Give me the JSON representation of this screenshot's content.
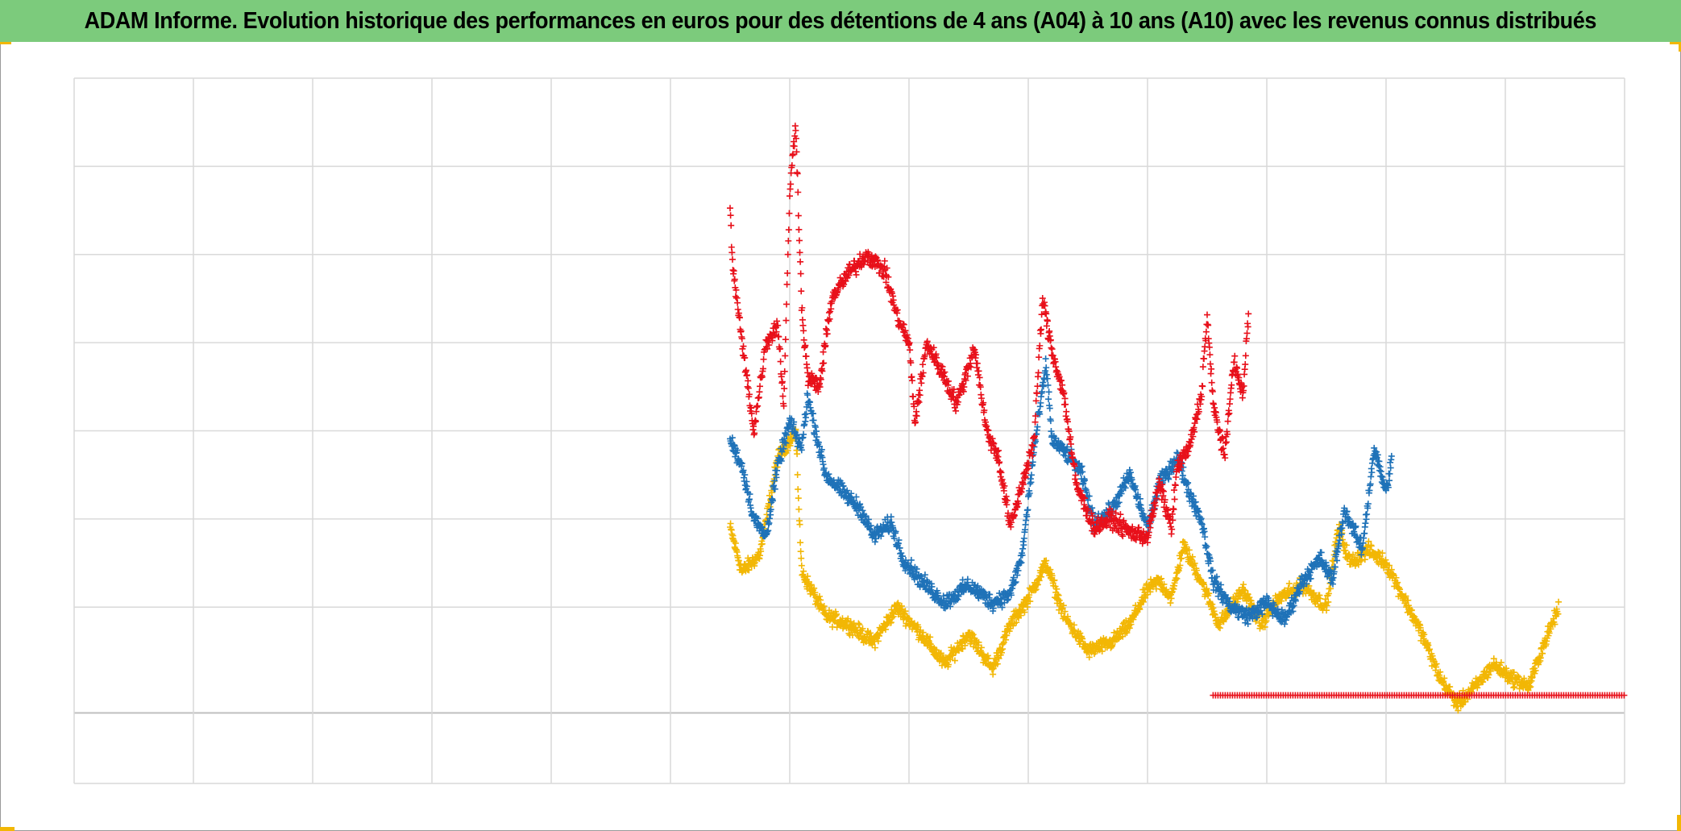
{
  "title": "ADAM Informe. Evolution historique des performances en euros pour des détentions de 4 ans (A04) à 10 ans (A10) avec les revenus connus distribués",
  "colors": {
    "title_bg": "#7ccb7c",
    "grid": "#d9d9d9",
    "zero_line": "#bfbfbf",
    "corner_marks": "#f2b705"
  },
  "chart_data": {
    "type": "scatter",
    "marker": "plus",
    "grid": true,
    "legend": "none",
    "x_grid_count": 13,
    "xlim": [
      0,
      13
    ],
    "ylim": [
      -0.8,
      7.2
    ],
    "y_gridlines": [
      -0.8,
      0,
      1.2,
      2.2,
      3.2,
      4.2,
      5.2,
      6.2,
      7.2
    ],
    "series": [
      {
        "color": "#f2b705",
        "anchors": [
          [
            5.5,
            2.1
          ],
          [
            5.6,
            1.6
          ],
          [
            5.75,
            1.8
          ],
          [
            5.9,
            2.9
          ],
          [
            6.05,
            3.2
          ],
          [
            6.1,
            1.6
          ],
          [
            6.3,
            1.1
          ],
          [
            6.5,
            1.0
          ],
          [
            6.7,
            0.8
          ],
          [
            6.9,
            1.2
          ],
          [
            7.1,
            0.9
          ],
          [
            7.3,
            0.55
          ],
          [
            7.5,
            0.9
          ],
          [
            7.7,
            0.5
          ],
          [
            7.85,
            1.0
          ],
          [
            8.0,
            1.3
          ],
          [
            8.15,
            1.7
          ],
          [
            8.3,
            1.1
          ],
          [
            8.5,
            0.7
          ],
          [
            8.7,
            0.8
          ],
          [
            8.85,
            1.0
          ],
          [
            9.0,
            1.4
          ],
          [
            9.1,
            1.5
          ],
          [
            9.2,
            1.3
          ],
          [
            9.3,
            1.9
          ],
          [
            9.45,
            1.5
          ],
          [
            9.6,
            1.0
          ],
          [
            9.7,
            1.2
          ],
          [
            9.8,
            1.4
          ],
          [
            9.95,
            1.0
          ],
          [
            10.1,
            1.3
          ],
          [
            10.3,
            1.45
          ],
          [
            10.5,
            1.2
          ],
          [
            10.6,
            2.1
          ],
          [
            10.7,
            1.7
          ],
          [
            10.85,
            1.85
          ],
          [
            11.0,
            1.7
          ],
          [
            11.15,
            1.3
          ],
          [
            11.3,
            0.9
          ],
          [
            11.45,
            0.4
          ],
          [
            11.6,
            0.1
          ],
          [
            11.75,
            0.3
          ],
          [
            11.9,
            0.55
          ],
          [
            12.05,
            0.4
          ],
          [
            12.2,
            0.3
          ],
          [
            12.3,
            0.7
          ],
          [
            12.45,
            1.2
          ]
        ],
        "jitter": 0.12
      },
      {
        "color": "#1f72b8",
        "anchors": [
          [
            5.5,
            3.1
          ],
          [
            5.6,
            2.8
          ],
          [
            5.7,
            2.2
          ],
          [
            5.8,
            2.0
          ],
          [
            5.9,
            2.8
          ],
          [
            6.0,
            3.3
          ],
          [
            6.1,
            3.0
          ],
          [
            6.15,
            3.6
          ],
          [
            6.3,
            2.7
          ],
          [
            6.45,
            2.5
          ],
          [
            6.6,
            2.3
          ],
          [
            6.7,
            2.0
          ],
          [
            6.85,
            2.15
          ],
          [
            6.95,
            1.75
          ],
          [
            7.1,
            1.5
          ],
          [
            7.3,
            1.25
          ],
          [
            7.5,
            1.45
          ],
          [
            7.7,
            1.25
          ],
          [
            7.85,
            1.35
          ],
          [
            7.95,
            1.8
          ],
          [
            8.05,
            3.0
          ],
          [
            8.15,
            3.95
          ],
          [
            8.2,
            3.1
          ],
          [
            8.35,
            2.9
          ],
          [
            8.45,
            2.7
          ],
          [
            8.55,
            2.15
          ],
          [
            8.7,
            2.3
          ],
          [
            8.85,
            2.7
          ],
          [
            9.0,
            2.1
          ],
          [
            9.1,
            2.6
          ],
          [
            9.25,
            2.9
          ],
          [
            9.35,
            2.5
          ],
          [
            9.45,
            2.2
          ],
          [
            9.55,
            1.5
          ],
          [
            9.7,
            1.2
          ],
          [
            9.85,
            1.1
          ],
          [
            10.0,
            1.25
          ],
          [
            10.15,
            1.05
          ],
          [
            10.3,
            1.5
          ],
          [
            10.45,
            1.75
          ],
          [
            10.55,
            1.5
          ],
          [
            10.65,
            2.3
          ],
          [
            10.8,
            1.85
          ],
          [
            10.9,
            3.0
          ],
          [
            11.0,
            2.5
          ],
          [
            11.05,
            2.9
          ]
        ],
        "jitter": 0.13
      },
      {
        "color": "#e8101a",
        "anchors": [
          [
            5.5,
            5.7
          ],
          [
            5.52,
            5.1
          ],
          [
            5.6,
            4.2
          ],
          [
            5.7,
            3.2
          ],
          [
            5.8,
            4.2
          ],
          [
            5.9,
            4.4
          ],
          [
            5.95,
            3.5
          ],
          [
            6.0,
            5.9
          ],
          [
            6.05,
            6.7
          ],
          [
            6.1,
            4.6
          ],
          [
            6.15,
            3.8
          ],
          [
            6.25,
            3.7
          ],
          [
            6.35,
            4.7
          ],
          [
            6.5,
            5.0
          ],
          [
            6.65,
            5.2
          ],
          [
            6.8,
            5.0
          ],
          [
            6.9,
            4.5
          ],
          [
            7.0,
            4.2
          ],
          [
            7.05,
            3.3
          ],
          [
            7.15,
            4.2
          ],
          [
            7.3,
            3.8
          ],
          [
            7.4,
            3.5
          ],
          [
            7.55,
            4.15
          ],
          [
            7.65,
            3.2
          ],
          [
            7.75,
            2.9
          ],
          [
            7.85,
            2.1
          ],
          [
            7.95,
            2.6
          ],
          [
            8.05,
            3.1
          ],
          [
            8.12,
            4.7
          ],
          [
            8.2,
            4.1
          ],
          [
            8.3,
            3.6
          ],
          [
            8.4,
            2.6
          ],
          [
            8.55,
            2.1
          ],
          [
            8.7,
            2.2
          ],
          [
            8.85,
            2.05
          ],
          [
            9.0,
            2.0
          ],
          [
            9.1,
            2.6
          ],
          [
            9.2,
            2.1
          ],
          [
            9.25,
            2.8
          ],
          [
            9.35,
            3.0
          ],
          [
            9.45,
            3.6
          ],
          [
            9.5,
            4.5
          ],
          [
            9.55,
            3.5
          ],
          [
            9.6,
            3.2
          ],
          [
            9.65,
            2.9
          ],
          [
            9.72,
            4.0
          ],
          [
            9.8,
            3.6
          ],
          [
            9.85,
            4.6
          ]
        ],
        "jitter": 0.14
      },
      {
        "color": "#e8101a",
        "anchors": [
          [
            9.55,
            0.2
          ],
          [
            13.0,
            0.2
          ]
        ],
        "jitter": 0.0,
        "flat": true
      }
    ]
  }
}
